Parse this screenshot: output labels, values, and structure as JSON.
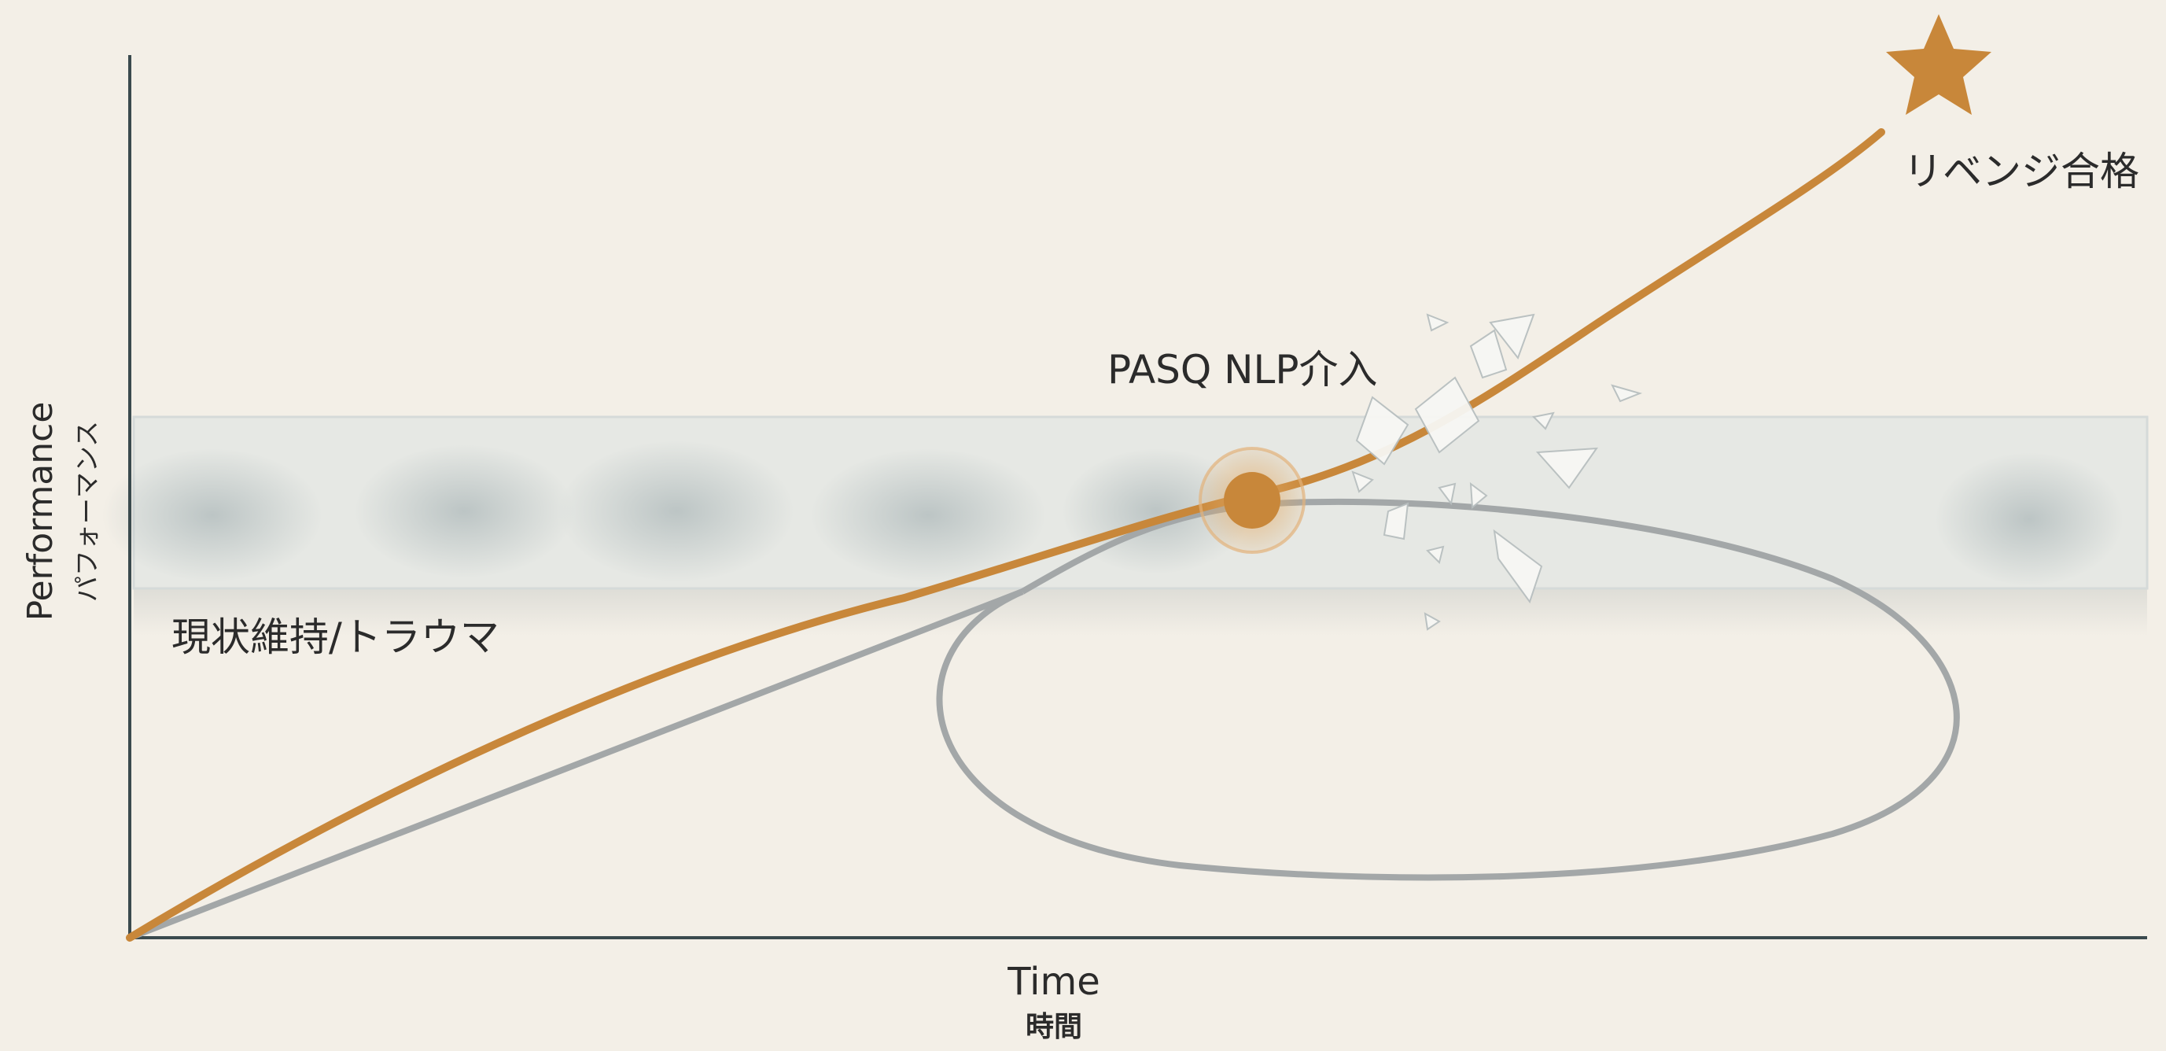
{
  "axes": {
    "y_title": "Performance",
    "y_subtitle": "パフォーマンス",
    "x_title": "Time",
    "x_subtitle": "時間"
  },
  "labels": {
    "plateau": "現状維持/トラウマ",
    "intervention": "PASQ NLP介入",
    "goal": "リベンジ合格"
  },
  "colors": {
    "background": "#f3efe7",
    "success_path": "#c8873a",
    "stagnation_path": "#a3a7a8",
    "axis": "#3a4a4e",
    "plateau_band": "#c9d1d2"
  },
  "icons": {
    "goal_marker": "star-icon",
    "intervention_marker": "circle-marker-icon",
    "break_through": "shattered-glass-icon"
  }
}
